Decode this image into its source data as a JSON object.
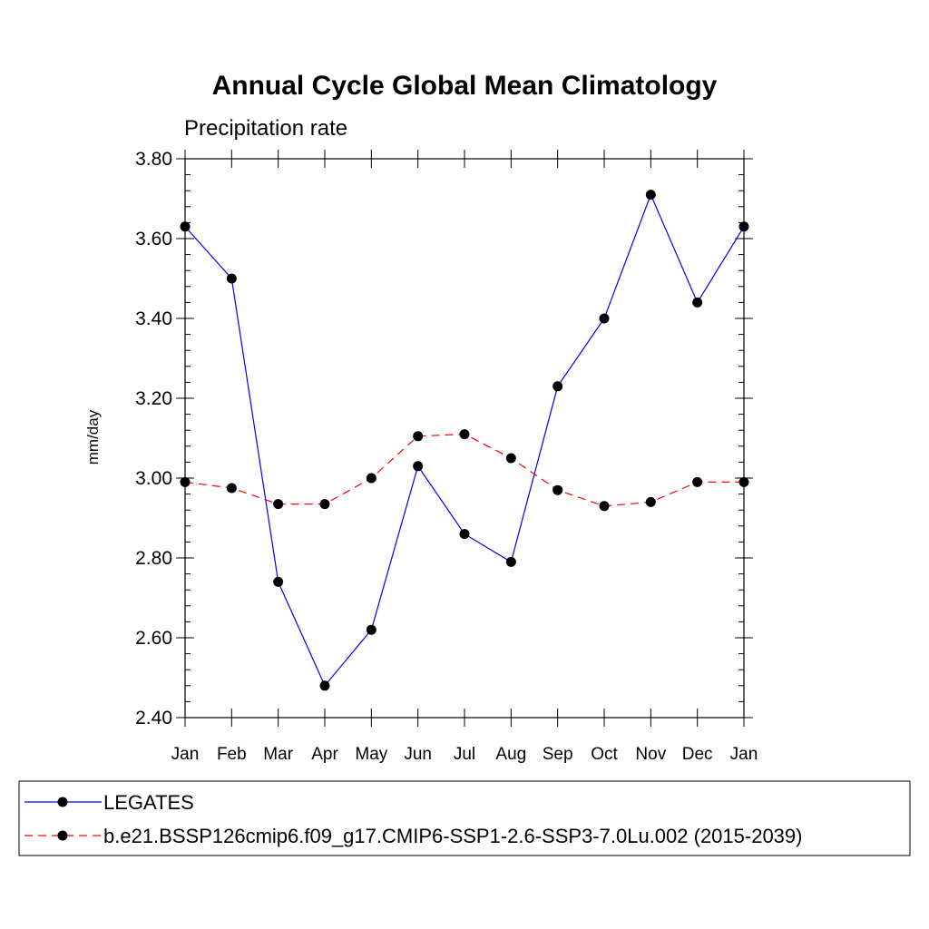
{
  "chart_data": {
    "type": "line",
    "title": "Annual Cycle Global Mean Climatology",
    "subtitle": "Precipitation rate",
    "xlabel": "",
    "ylabel": "mm/day",
    "categories": [
      "Jan",
      "Feb",
      "Mar",
      "Apr",
      "May",
      "Jun",
      "Jul",
      "Aug",
      "Sep",
      "Oct",
      "Nov",
      "Dec",
      "Jan"
    ],
    "ylim": [
      2.4,
      3.8
    ],
    "yticks": [
      "2.40",
      "2.60",
      "2.80",
      "3.00",
      "3.20",
      "3.40",
      "3.60",
      "3.80"
    ],
    "grid": false,
    "legend_position": "bottom",
    "series": [
      {
        "name": "LEGATES",
        "color": "#0000ff",
        "line_style": "solid",
        "marker": "filled-circle",
        "values": [
          3.63,
          3.5,
          2.74,
          2.48,
          2.62,
          3.03,
          2.86,
          2.79,
          3.23,
          3.4,
          3.71,
          3.44,
          3.63
        ]
      },
      {
        "name": "b.e21.BSSP126cmip6.f09_g17.CMIP6-SSP1-2.6-SSP3-7.0Lu.002 (2015-2039)",
        "color": "#ff0000",
        "line_style": "dashed",
        "marker": "filled-circle",
        "values": [
          2.99,
          2.975,
          2.935,
          2.935,
          3.0,
          3.105,
          3.11,
          3.05,
          2.97,
          2.93,
          2.94,
          2.99,
          2.99
        ]
      }
    ]
  }
}
